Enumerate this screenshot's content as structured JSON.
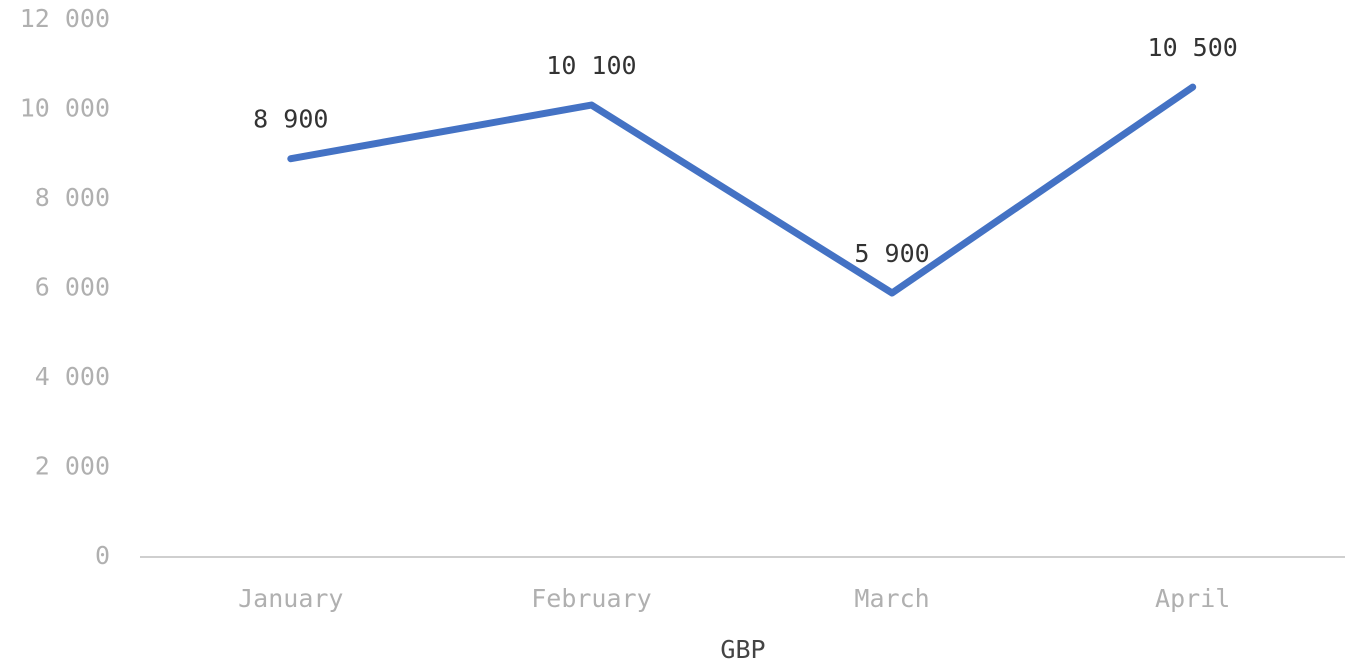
{
  "chart_data": {
    "type": "line",
    "x_label": "GBP",
    "categories": [
      "January",
      "February",
      "March",
      "April"
    ],
    "series": [
      {
        "name": "GBP",
        "color": "#4472c4",
        "values": [
          8900,
          10100,
          5900,
          10500
        ],
        "value_labels": [
          "8 900",
          "10 100",
          "5 900",
          "10 500"
        ]
      }
    ],
    "ylim": [
      0,
      12000
    ],
    "yticks": [
      0,
      {
        "value": 2000,
        "label": "2 000"
      },
      {
        "value": 4000,
        "label": "4 000"
      },
      {
        "value": 6000,
        "label": "6 000"
      },
      {
        "value": 8000,
        "label": "8 000"
      },
      {
        "value": 10000,
        "label": "10 000"
      },
      {
        "value": 12000,
        "label": "12 000"
      }
    ],
    "grid": false
  }
}
